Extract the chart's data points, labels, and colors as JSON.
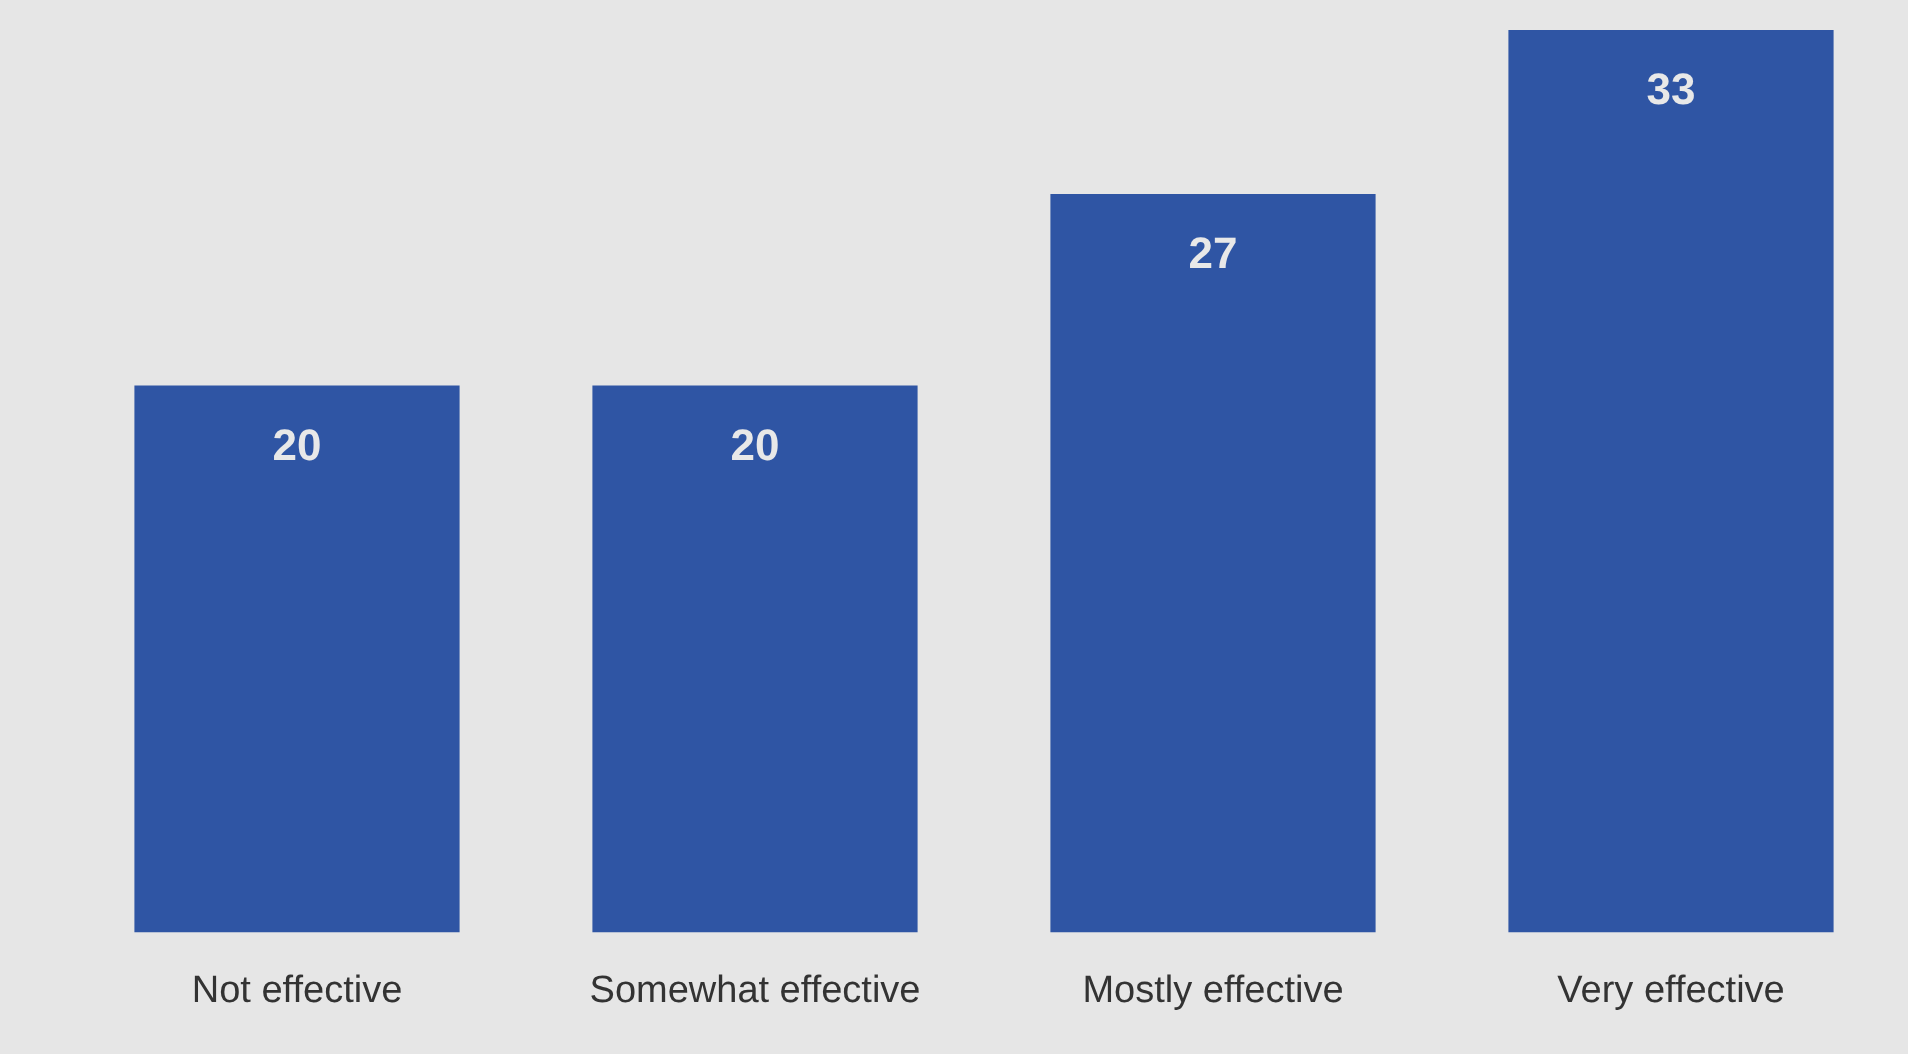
{
  "chart_data": {
    "type": "bar",
    "categories": [
      "Not effective",
      "Somewhat effective",
      "Mostly effective",
      "Very effective"
    ],
    "values": [
      20,
      20,
      27,
      33
    ],
    "color": "#2f55a4",
    "data_labels": true,
    "grid": false,
    "legend": false
  }
}
